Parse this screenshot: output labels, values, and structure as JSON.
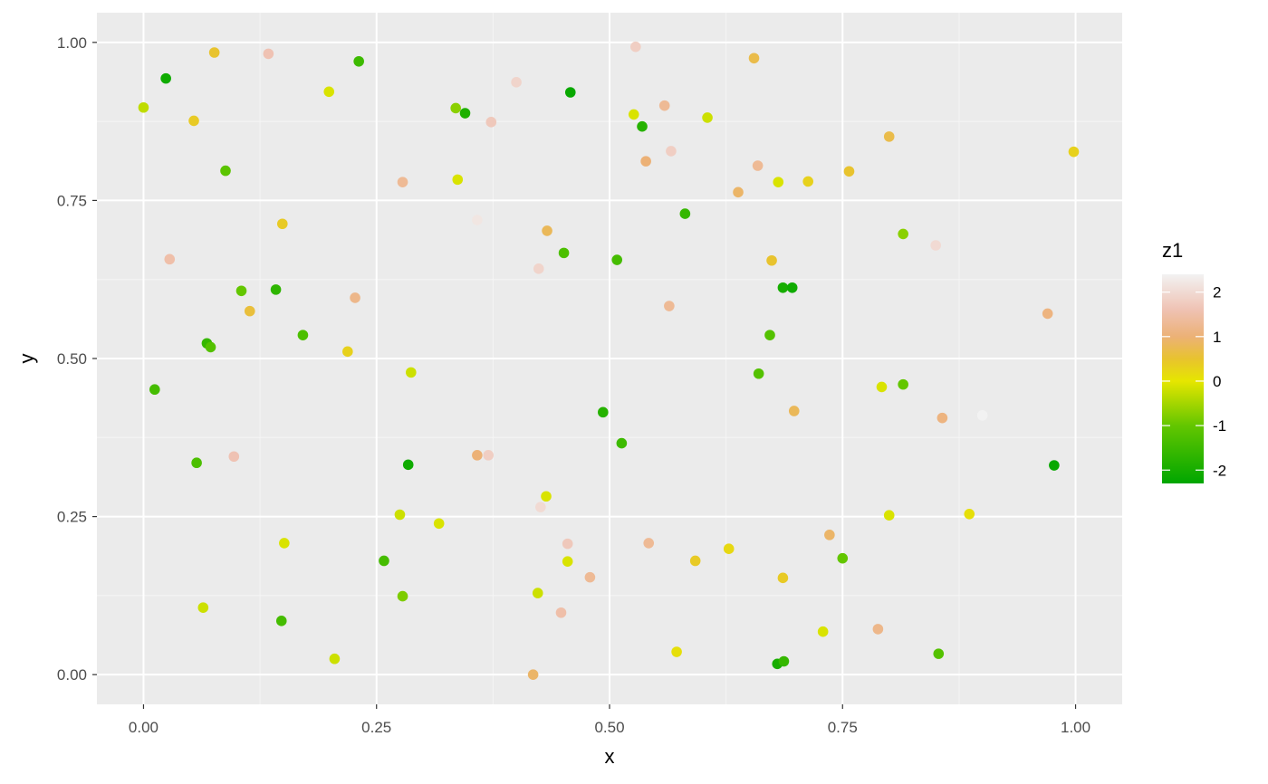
{
  "chart_data": {
    "type": "scatter",
    "xlabel": "x",
    "ylabel": "y",
    "xlim": [
      -0.05,
      1.05
    ],
    "ylim": [
      -0.047,
      1.047
    ],
    "x_ticks": [
      0,
      0.25,
      0.5,
      0.75,
      1
    ],
    "x_tick_labels": [
      "0.00",
      "0.25",
      "0.50",
      "0.75",
      "1.00"
    ],
    "y_ticks": [
      0,
      0.25,
      0.5,
      0.75,
      1
    ],
    "y_tick_labels": [
      "0.00",
      "0.25",
      "0.50",
      "0.75",
      "1.00"
    ],
    "grid": true,
    "legend": {
      "title": "z1",
      "placement": "right",
      "range": [
        -2.3,
        2.4
      ],
      "breaks": [
        2,
        1,
        0,
        -1,
        -2
      ],
      "break_labels": [
        "2",
        "1",
        "0",
        "-1",
        "-2"
      ],
      "gradient": [
        {
          "value": -2.3,
          "color": "#00A600"
        },
        {
          "value": -1.0,
          "color": "#63C600"
        },
        {
          "value": 0.0,
          "color": "#E6E600"
        },
        {
          "value": 0.5,
          "color": "#E8C32E"
        },
        {
          "value": 1.0,
          "color": "#ECB176"
        },
        {
          "value": 1.6,
          "color": "#EFC2B3"
        },
        {
          "value": 2.4,
          "color": "#F2F2F2"
        }
      ]
    },
    "colors": {
      "panel_background": "#EBEBEB",
      "grid_major": "#FFFFFF",
      "grid_minor": "#F5F5F5",
      "tick_text": "#4D4D4D"
    },
    "points": [
      {
        "x": 0.0,
        "y": 0.897,
        "z": -0.3
      },
      {
        "x": 0.024,
        "y": 0.943,
        "z": -2.1
      },
      {
        "x": 0.076,
        "y": 0.984,
        "z": 0.5
      },
      {
        "x": 0.134,
        "y": 0.982,
        "z": 1.6
      },
      {
        "x": 0.231,
        "y": 0.97,
        "z": -1.5
      },
      {
        "x": 0.054,
        "y": 0.876,
        "z": 0.4
      },
      {
        "x": 0.199,
        "y": 0.922,
        "z": -0.1
      },
      {
        "x": 0.088,
        "y": 0.797,
        "z": -1.1
      },
      {
        "x": 0.028,
        "y": 0.657,
        "z": 1.5
      },
      {
        "x": 0.149,
        "y": 0.713,
        "z": 0.4
      },
      {
        "x": 0.105,
        "y": 0.607,
        "z": -1.0
      },
      {
        "x": 0.142,
        "y": 0.609,
        "z": -1.7
      },
      {
        "x": 0.114,
        "y": 0.575,
        "z": 0.6
      },
      {
        "x": 0.068,
        "y": 0.524,
        "z": -1.6
      },
      {
        "x": 0.072,
        "y": 0.518,
        "z": -1.2
      },
      {
        "x": 0.171,
        "y": 0.537,
        "z": -1.3
      },
      {
        "x": 0.227,
        "y": 0.596,
        "z": 1.2
      },
      {
        "x": 0.219,
        "y": 0.511,
        "z": 0.3
      },
      {
        "x": 0.012,
        "y": 0.451,
        "z": -1.4
      },
      {
        "x": 0.097,
        "y": 0.345,
        "z": 1.6
      },
      {
        "x": 0.057,
        "y": 0.335,
        "z": -1.3
      },
      {
        "x": 0.151,
        "y": 0.208,
        "z": -0.1
      },
      {
        "x": 0.064,
        "y": 0.106,
        "z": -0.2
      },
      {
        "x": 0.148,
        "y": 0.085,
        "z": -1.4
      },
      {
        "x": 0.205,
        "y": 0.025,
        "z": -0.2
      },
      {
        "x": 0.258,
        "y": 0.18,
        "z": -1.4
      },
      {
        "x": 0.275,
        "y": 0.253,
        "z": -0.2
      },
      {
        "x": 0.278,
        "y": 0.124,
        "z": -0.8
      },
      {
        "x": 0.284,
        "y": 0.332,
        "z": -2.1
      },
      {
        "x": 0.287,
        "y": 0.478,
        "z": -0.2
      },
      {
        "x": 0.317,
        "y": 0.239,
        "z": -0.1
      },
      {
        "x": 0.278,
        "y": 0.779,
        "z": 1.3
      },
      {
        "x": 0.335,
        "y": 0.896,
        "z": -0.7
      },
      {
        "x": 0.345,
        "y": 0.888,
        "z": -1.9
      },
      {
        "x": 0.337,
        "y": 0.783,
        "z": -0.1
      },
      {
        "x": 0.373,
        "y": 0.874,
        "z": 1.7
      },
      {
        "x": 0.4,
        "y": 0.937,
        "z": 1.9
      },
      {
        "x": 0.358,
        "y": 0.719,
        "z": 2.2
      },
      {
        "x": 0.358,
        "y": 0.347,
        "z": 1.0
      },
      {
        "x": 0.37,
        "y": 0.347,
        "z": 1.8
      },
      {
        "x": 0.433,
        "y": 0.702,
        "z": 0.8
      },
      {
        "x": 0.424,
        "y": 0.642,
        "z": 1.9
      },
      {
        "x": 0.451,
        "y": 0.667,
        "z": -1.3
      },
      {
        "x": 0.458,
        "y": 0.921,
        "z": -2.2
      },
      {
        "x": 0.432,
        "y": 0.282,
        "z": -0.1
      },
      {
        "x": 0.426,
        "y": 0.265,
        "z": 2.0
      },
      {
        "x": 0.455,
        "y": 0.207,
        "z": 1.7
      },
      {
        "x": 0.455,
        "y": 0.179,
        "z": -0.1
      },
      {
        "x": 0.423,
        "y": 0.129,
        "z": -0.2
      },
      {
        "x": 0.448,
        "y": 0.098,
        "z": 1.5
      },
      {
        "x": 0.479,
        "y": 0.154,
        "z": 1.3
      },
      {
        "x": 0.418,
        "y": 0.0,
        "z": 0.9
      },
      {
        "x": 0.493,
        "y": 0.415,
        "z": -1.8
      },
      {
        "x": 0.508,
        "y": 0.656,
        "z": -1.4
      },
      {
        "x": 0.513,
        "y": 0.366,
        "z": -1.5
      },
      {
        "x": 0.528,
        "y": 0.993,
        "z": 1.8
      },
      {
        "x": 0.526,
        "y": 0.886,
        "z": -0.1
      },
      {
        "x": 0.535,
        "y": 0.867,
        "z": -1.8
      },
      {
        "x": 0.539,
        "y": 0.812,
        "z": 1.0
      },
      {
        "x": 0.559,
        "y": 0.9,
        "z": 1.3
      },
      {
        "x": 0.566,
        "y": 0.828,
        "z": 1.8
      },
      {
        "x": 0.564,
        "y": 0.583,
        "z": 1.3
      },
      {
        "x": 0.581,
        "y": 0.729,
        "z": -1.6
      },
      {
        "x": 0.605,
        "y": 0.881,
        "z": -0.2
      },
      {
        "x": 0.542,
        "y": 0.208,
        "z": 1.3
      },
      {
        "x": 0.572,
        "y": 0.036,
        "z": 0.1
      },
      {
        "x": 0.592,
        "y": 0.18,
        "z": 0.4
      },
      {
        "x": 0.628,
        "y": 0.199,
        "z": 0.2
      },
      {
        "x": 0.655,
        "y": 0.975,
        "z": 0.7
      },
      {
        "x": 0.638,
        "y": 0.763,
        "z": 0.9
      },
      {
        "x": 0.659,
        "y": 0.805,
        "z": 1.3
      },
      {
        "x": 0.681,
        "y": 0.779,
        "z": -0.1
      },
      {
        "x": 0.713,
        "y": 0.78,
        "z": 0.3
      },
      {
        "x": 0.674,
        "y": 0.655,
        "z": 0.5
      },
      {
        "x": 0.686,
        "y": 0.612,
        "z": -2.0
      },
      {
        "x": 0.696,
        "y": 0.612,
        "z": -2.1
      },
      {
        "x": 0.672,
        "y": 0.537,
        "z": -1.2
      },
      {
        "x": 0.66,
        "y": 0.476,
        "z": -1.2
      },
      {
        "x": 0.698,
        "y": 0.417,
        "z": 0.8
      },
      {
        "x": 0.686,
        "y": 0.153,
        "z": 0.4
      },
      {
        "x": 0.68,
        "y": 0.017,
        "z": -2.0
      },
      {
        "x": 0.687,
        "y": 0.021,
        "z": -1.6
      },
      {
        "x": 0.729,
        "y": 0.068,
        "z": -0.1
      },
      {
        "x": 0.736,
        "y": 0.221,
        "z": 0.9
      },
      {
        "x": 0.75,
        "y": 0.184,
        "z": -1.0
      },
      {
        "x": 0.757,
        "y": 0.796,
        "z": 0.5
      },
      {
        "x": 0.8,
        "y": 0.851,
        "z": 0.7
      },
      {
        "x": 0.815,
        "y": 0.697,
        "z": -0.7
      },
      {
        "x": 0.792,
        "y": 0.455,
        "z": -0.1
      },
      {
        "x": 0.815,
        "y": 0.459,
        "z": -1.0
      },
      {
        "x": 0.8,
        "y": 0.252,
        "z": -0.1
      },
      {
        "x": 0.788,
        "y": 0.072,
        "z": 1.2
      },
      {
        "x": 0.85,
        "y": 0.679,
        "z": 2.0
      },
      {
        "x": 0.857,
        "y": 0.406,
        "z": 1.1
      },
      {
        "x": 0.853,
        "y": 0.033,
        "z": -1.2
      },
      {
        "x": 0.886,
        "y": 0.254,
        "z": 0.1
      },
      {
        "x": 0.9,
        "y": 0.41,
        "z": 2.4
      },
      {
        "x": 0.97,
        "y": 0.571,
        "z": 1.1
      },
      {
        "x": 0.977,
        "y": 0.331,
        "z": -2.2
      },
      {
        "x": 0.998,
        "y": 0.827,
        "z": 0.3
      }
    ]
  }
}
